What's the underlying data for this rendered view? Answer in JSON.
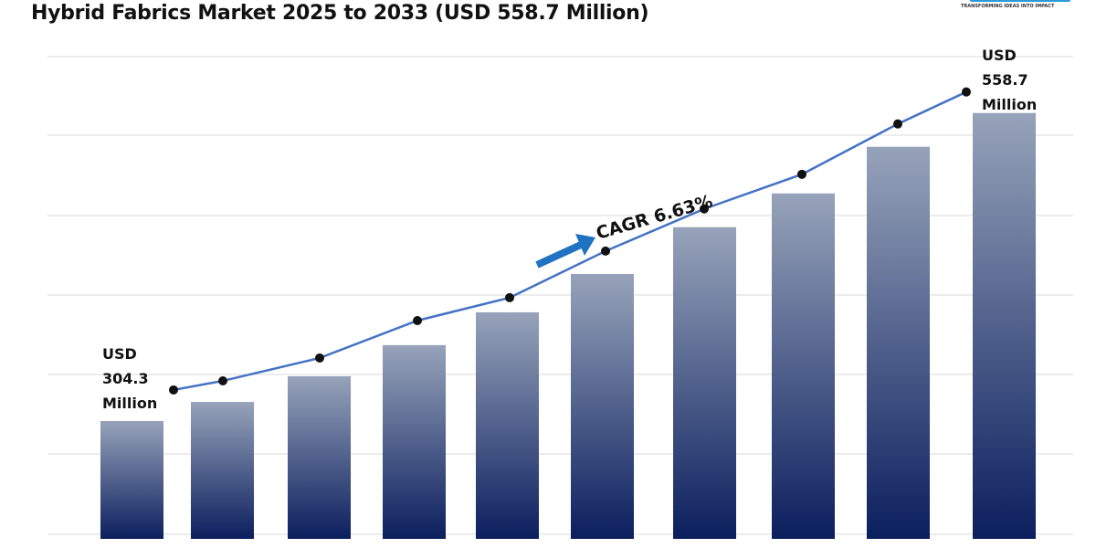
{
  "title": "Hybrid Fabrics Market 2025 to 2033 (USD 558.7 Million)",
  "logo": {
    "tagline": "TRANSFORMING IDEAS INTO IMPACT"
  },
  "colors": {
    "bar_top": "#97a3ba",
    "bar_bottom": "#0b1f5e",
    "line": "#4472c4",
    "arrow": "#1f73c2",
    "grid": "#d9d9d9"
  },
  "chart_data": {
    "type": "bar",
    "title": "Hybrid Fabrics Market 2025 to 2033 (USD 558.7 Million)",
    "xlabel": "",
    "ylabel": "",
    "ylim": [
      207,
      600
    ],
    "grid": true,
    "values": [
      304.3,
      320.1,
      341.3,
      367.0,
      394.1,
      425.8,
      464.4,
      492.3,
      530.8,
      558.7
    ],
    "trend_line": [
      330,
      337.5,
      356.4,
      387.3,
      406.2,
      444.7,
      479.5,
      508.1,
      549.7,
      576.1
    ],
    "annotations": {
      "start": [
        "USD",
        "304.3",
        "Million"
      ],
      "end": [
        "USD",
        "558.7",
        "Million"
      ],
      "cagr": "CAGR 6.63%"
    }
  }
}
